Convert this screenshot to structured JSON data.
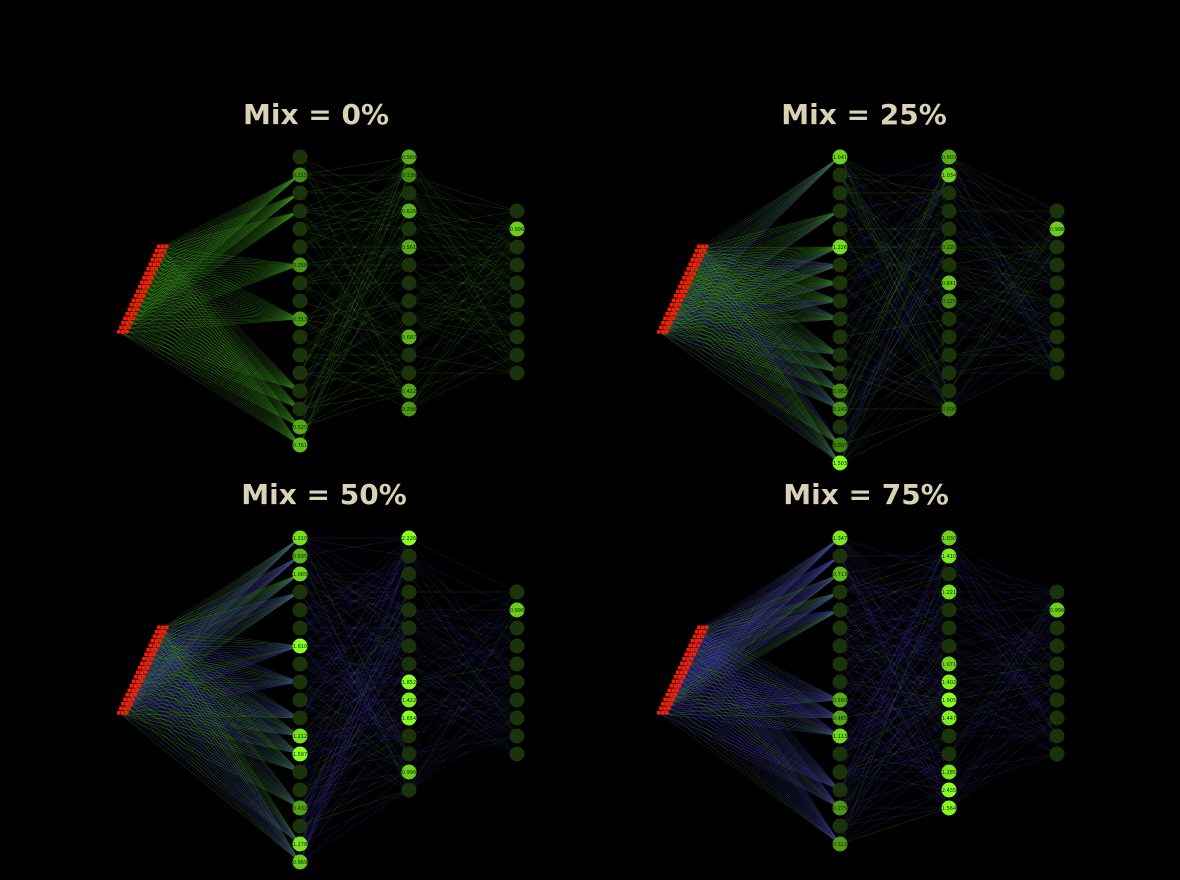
{
  "panels": [
    {
      "title": "Mix = 0%",
      "hidden1": [
        "",
        "0.115",
        "",
        "",
        "",
        "",
        "0.258",
        "",
        "",
        "0.313",
        "",
        "",
        "",
        "",
        "",
        "0.525",
        "0.761"
      ],
      "hidden2": [
        "0.569",
        "0.136",
        "",
        "0.626",
        "",
        "0.561",
        "",
        "",
        "",
        "",
        "0.687",
        "",
        "",
        "0.422",
        "0.298"
      ]
    },
    {
      "title": "Mix = 25%",
      "hidden1": [
        "1.041",
        "",
        "",
        "",
        "",
        "1.226",
        "",
        "",
        "",
        "",
        "",
        "",
        "",
        "0.082",
        "0.249",
        "",
        "0.007",
        "1.503"
      ],
      "hidden2": [
        "0.603",
        "1.034",
        "",
        "",
        "",
        "0.220",
        "",
        "0.841",
        "0.125",
        "",
        "",
        "",
        "",
        "",
        "0.006"
      ]
    },
    {
      "title": "Mix = 50%",
      "hidden1": [
        "1.210",
        "0.635",
        "1.085",
        "",
        "",
        "",
        "1.610",
        "",
        "",
        "",
        "",
        "1.212",
        "1.597",
        "",
        "",
        "0.432",
        "",
        "1.278",
        "0.969"
      ],
      "hidden2": [
        "2.226",
        "",
        "",
        "",
        "",
        "",
        "",
        "",
        "1.852",
        "1.422",
        "1.654",
        "",
        "",
        "0.996",
        ""
      ]
    },
    {
      "title": "Mix = 75%",
      "hidden1": [
        "1.347",
        "",
        "0.713",
        "",
        "",
        "",
        "",
        "",
        "",
        "0.560",
        "0.465",
        "1.113",
        "",
        "",
        "",
        "0.275",
        "",
        "0.322"
      ],
      "hidden2": [
        "1.030",
        "1.410",
        "",
        "1.221",
        "",
        "",
        "",
        "1.071",
        "1.402",
        "1.905",
        "1.447",
        "",
        "",
        "1.285",
        "2.435",
        "1.564"
      ]
    }
  ],
  "colors": {
    "input_node": "#ff1a00",
    "node_bright": "#88ff22",
    "node_dark": "#1a330a",
    "edge_positive": "#3fa020",
    "edge_negative": "#4a3fc0",
    "title": "#d9d2b4"
  }
}
